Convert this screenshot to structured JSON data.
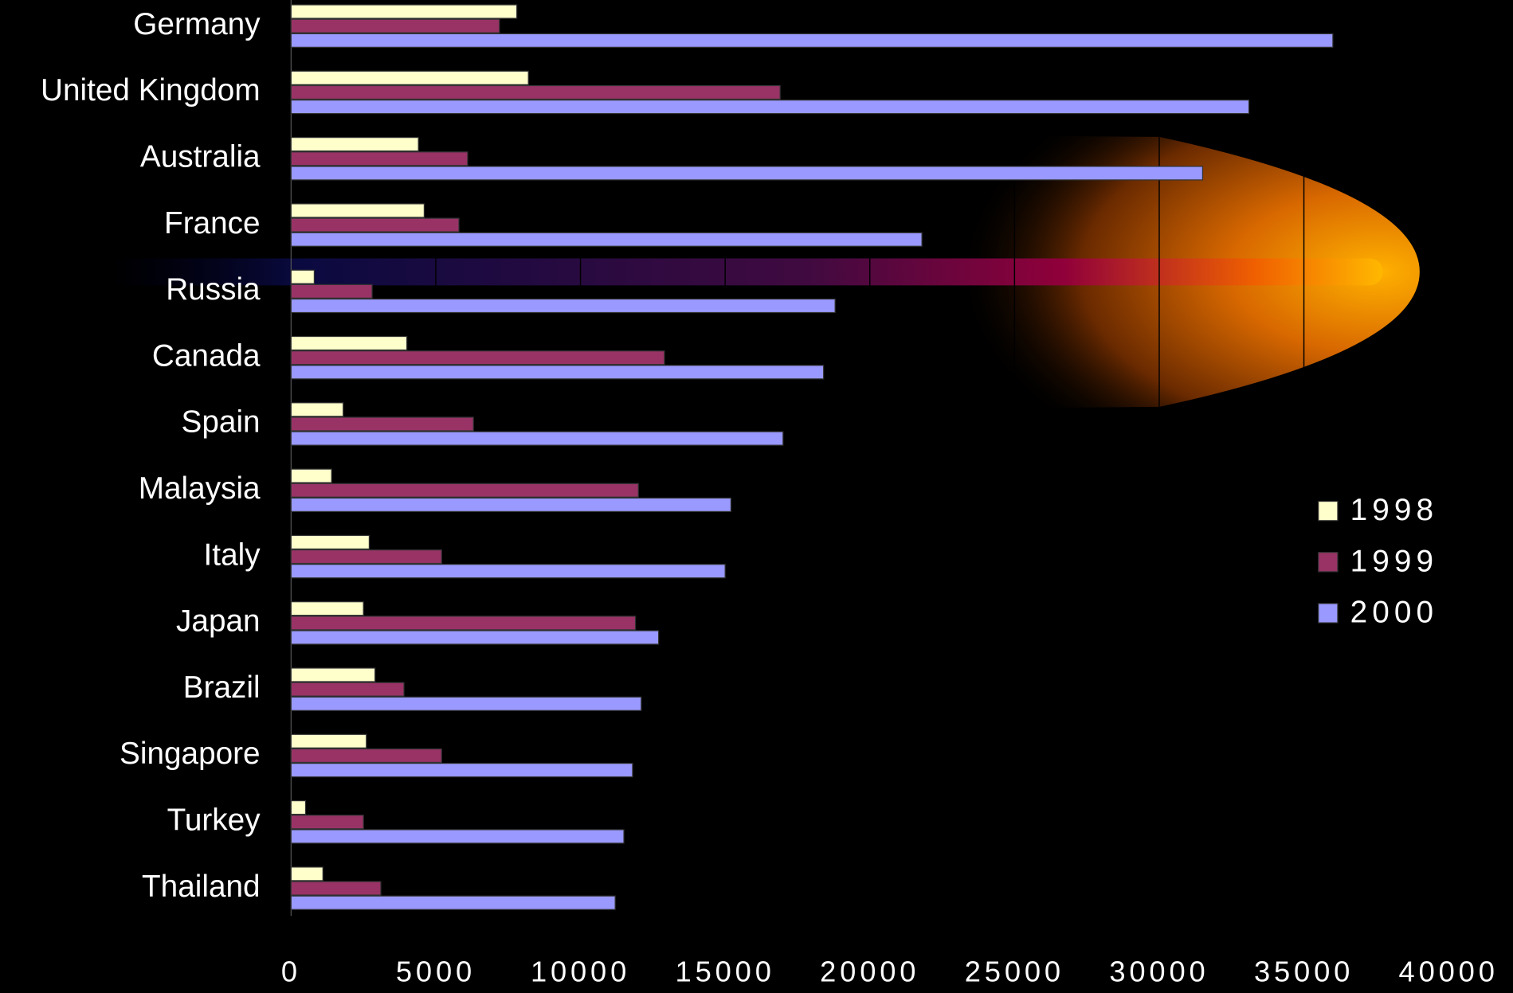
{
  "chart_data": {
    "type": "bar",
    "orientation": "horizontal",
    "categories": [
      "Germany",
      "United Kingdom",
      "Australia",
      "France",
      "Russia",
      "Canada",
      "Spain",
      "Malaysia",
      "Italy",
      "Japan",
      "Brazil",
      "Singapore",
      "Turkey",
      "Thailand"
    ],
    "series": [
      {
        "name": "1998",
        "color": "#ffffcc",
        "values": [
          7800,
          8200,
          4400,
          4600,
          800,
          4000,
          1800,
          1400,
          2700,
          2500,
          2900,
          2600,
          500,
          1100
        ]
      },
      {
        "name": "1999",
        "color": "#993366",
        "values": [
          7200,
          16900,
          6100,
          5800,
          2800,
          12900,
          6300,
          12000,
          5200,
          11900,
          3900,
          5200,
          2500,
          3100
        ]
      },
      {
        "name": "2000",
        "color": "#9999ff",
        "values": [
          36000,
          33100,
          31500,
          21800,
          18800,
          18400,
          17000,
          15200,
          15000,
          12700,
          12100,
          11800,
          11500,
          11200
        ]
      }
    ],
    "xlim": [
      0,
      40000
    ],
    "xticks": [
      0,
      5000,
      10000,
      15000,
      20000,
      25000,
      30000,
      35000,
      40000
    ],
    "grid": true,
    "legend": "right"
  }
}
